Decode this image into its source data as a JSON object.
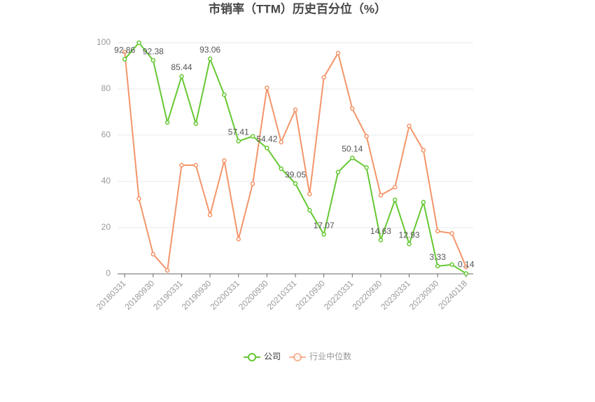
{
  "chart_data": {
    "type": "line",
    "title": "市销率（TTM）历史百分位（%）",
    "categories": [
      "20180331",
      null,
      "20180930",
      null,
      "20190331",
      null,
      "20190930",
      null,
      "20200331",
      null,
      "20200930",
      null,
      "20210331",
      null,
      "20210930",
      null,
      "20220331",
      null,
      "20220930",
      null,
      "20230331",
      null,
      "20230930",
      null,
      "20240118"
    ],
    "series": [
      {
        "name": "公司",
        "color": "#66c833",
        "values": [
          92.86,
          100,
          92.38,
          65.5,
          85.44,
          65,
          93.06,
          77.5,
          57.41,
          59.5,
          54.42,
          45.5,
          39.05,
          27.5,
          17.07,
          44,
          50.14,
          46,
          14.63,
          32,
          12.93,
          31,
          3.33,
          4,
          0.14
        ],
        "value_labels": [
          "92.86",
          null,
          "92.38",
          null,
          "85.44",
          null,
          "93.06",
          null,
          "57.41",
          null,
          "54.42",
          null,
          "39.05",
          null,
          "17.07",
          null,
          "50.14",
          null,
          "14.63",
          null,
          "12.93",
          null,
          "3.33",
          null,
          "0.14"
        ]
      },
      {
        "name": "行业中位数",
        "color": "#f4956a",
        "values": [
          96,
          32.5,
          8.5,
          1.5,
          47,
          47,
          25.5,
          49,
          15,
          39,
          80.5,
          57,
          71,
          34.5,
          85,
          95.5,
          71.5,
          59.5,
          34,
          37.5,
          64,
          53.5,
          18.5,
          17.5,
          3
        ]
      }
    ],
    "ylim": [
      0,
      100
    ],
    "yticks": [
      0,
      20,
      40,
      60,
      80,
      100
    ],
    "grid": true,
    "legend": "bottom"
  }
}
